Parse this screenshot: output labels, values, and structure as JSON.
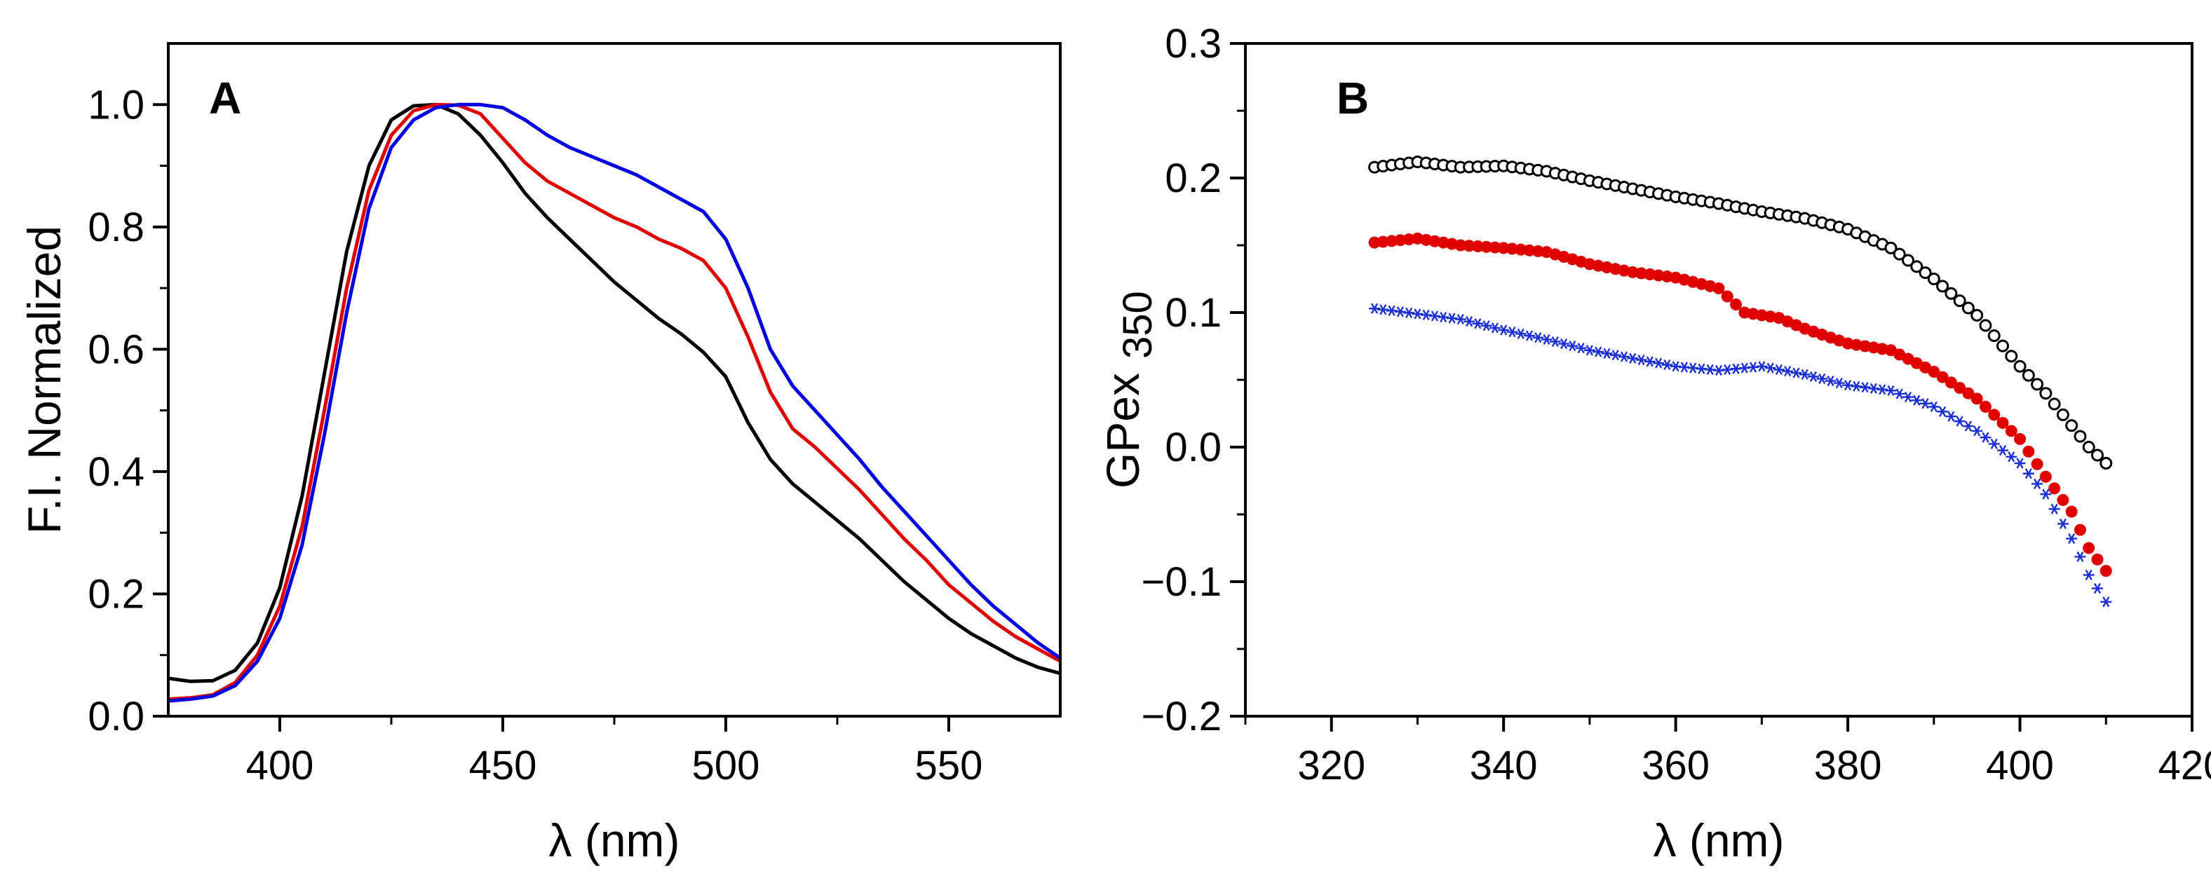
{
  "chart_data": [
    {
      "panel_label": "A",
      "type": "line",
      "xlabel": "λ (nm)",
      "ylabel": "F.I. Normalized",
      "xlim": [
        375,
        575
      ],
      "ylim": [
        0.0,
        1.1
      ],
      "xticks": [
        400,
        450,
        500,
        550
      ],
      "xtick_labels": [
        "400",
        "450",
        "500",
        "550"
      ],
      "yticks": [
        0.0,
        0.2,
        0.4,
        0.6,
        0.8,
        1.0
      ],
      "ytick_labels": [
        "0.0",
        "0.2",
        "0.4",
        "0.6",
        "0.8",
        "1.0"
      ],
      "grid": false,
      "series": [
        {
          "name": "black",
          "color": "#000000",
          "x": [
            375,
            380,
            385,
            390,
            395,
            400,
            405,
            410,
            415,
            420,
            425,
            430,
            435,
            440,
            445,
            450,
            455,
            460,
            465,
            470,
            475,
            480,
            485,
            490,
            495,
            500,
            505,
            510,
            515,
            520,
            525,
            530,
            535,
            540,
            545,
            550,
            555,
            560,
            565,
            570,
            575
          ],
          "y": [
            0.062,
            0.057,
            0.058,
            0.075,
            0.12,
            0.21,
            0.36,
            0.56,
            0.76,
            0.9,
            0.975,
            0.998,
            1.0,
            0.985,
            0.95,
            0.905,
            0.855,
            0.815,
            0.78,
            0.745,
            0.71,
            0.68,
            0.65,
            0.625,
            0.595,
            0.555,
            0.48,
            0.42,
            0.38,
            0.35,
            0.32,
            0.29,
            0.255,
            0.22,
            0.19,
            0.16,
            0.135,
            0.115,
            0.095,
            0.08,
            0.07
          ]
        },
        {
          "name": "red",
          "color": "#e00000",
          "x": [
            375,
            380,
            385,
            390,
            395,
            400,
            405,
            410,
            415,
            420,
            425,
            430,
            435,
            440,
            445,
            450,
            455,
            460,
            465,
            470,
            475,
            480,
            485,
            490,
            495,
            500,
            505,
            510,
            515,
            520,
            525,
            530,
            535,
            540,
            545,
            550,
            555,
            560,
            565,
            570,
            575
          ],
          "y": [
            0.028,
            0.03,
            0.035,
            0.055,
            0.1,
            0.18,
            0.31,
            0.5,
            0.7,
            0.86,
            0.95,
            0.99,
            1.0,
            0.999,
            0.985,
            0.945,
            0.905,
            0.875,
            0.855,
            0.835,
            0.815,
            0.8,
            0.78,
            0.765,
            0.745,
            0.7,
            0.62,
            0.53,
            0.47,
            0.44,
            0.405,
            0.37,
            0.33,
            0.29,
            0.255,
            0.215,
            0.185,
            0.155,
            0.13,
            0.11,
            0.09
          ]
        },
        {
          "name": "blue",
          "color": "#0000e0",
          "x": [
            375,
            380,
            385,
            390,
            395,
            400,
            405,
            410,
            415,
            420,
            425,
            430,
            435,
            440,
            445,
            450,
            455,
            460,
            465,
            470,
            475,
            480,
            485,
            490,
            495,
            500,
            505,
            510,
            515,
            520,
            525,
            530,
            535,
            540,
            545,
            550,
            555,
            560,
            565,
            570,
            575
          ],
          "y": [
            0.025,
            0.028,
            0.033,
            0.05,
            0.09,
            0.16,
            0.28,
            0.46,
            0.66,
            0.83,
            0.93,
            0.975,
            0.995,
            1.0,
            1.0,
            0.995,
            0.975,
            0.95,
            0.93,
            0.915,
            0.9,
            0.885,
            0.865,
            0.845,
            0.825,
            0.78,
            0.7,
            0.6,
            0.54,
            0.5,
            0.46,
            0.42,
            0.375,
            0.335,
            0.295,
            0.255,
            0.215,
            0.18,
            0.15,
            0.12,
            0.095
          ]
        }
      ]
    },
    {
      "panel_label": "B",
      "type": "scatter",
      "xlabel": "λ (nm)",
      "ylabel_main": "GPex",
      "ylabel_sub": "350",
      "xlim": [
        310,
        420
      ],
      "ylim": [
        -0.2,
        0.3
      ],
      "xticks": [
        320,
        340,
        360,
        380,
        400,
        420
      ],
      "xtick_labels": [
        "320",
        "340",
        "360",
        "380",
        "400",
        "420"
      ],
      "yticks": [
        -0.2,
        -0.1,
        0.0,
        0.1,
        0.2,
        0.3
      ],
      "ytick_labels": [
        "−0.2",
        "−0.1",
        "0.0",
        "0.1",
        "0.2",
        "0.3"
      ],
      "grid": false,
      "series": [
        {
          "name": "open circles (black)",
          "marker": "open-circle",
          "color": "#000000",
          "x": [
            325,
            330,
            335,
            340,
            345,
            350,
            355,
            360,
            365,
            370,
            375,
            380,
            385,
            390,
            395,
            400,
            403,
            406,
            408,
            410
          ],
          "y": [
            0.208,
            0.212,
            0.208,
            0.209,
            0.205,
            0.198,
            0.192,
            0.186,
            0.181,
            0.175,
            0.17,
            0.162,
            0.148,
            0.125,
            0.098,
            0.06,
            0.04,
            0.016,
            0.0,
            -0.012
          ]
        },
        {
          "name": "filled circles (red)",
          "marker": "filled-circle",
          "color": "#e00000",
          "x": [
            325,
            330,
            335,
            340,
            345,
            350,
            355,
            360,
            365,
            368,
            372,
            375,
            380,
            385,
            390,
            395,
            400,
            403,
            406,
            408,
            410
          ],
          "y": [
            0.152,
            0.155,
            0.15,
            0.148,
            0.145,
            0.136,
            0.13,
            0.126,
            0.118,
            0.1,
            0.096,
            0.088,
            0.077,
            0.072,
            0.056,
            0.036,
            0.006,
            -0.022,
            -0.048,
            -0.075,
            -0.092
          ]
        },
        {
          "name": "asterisks (blue)",
          "marker": "asterisk",
          "color": "#1a2ed8",
          "x": [
            325,
            330,
            335,
            340,
            345,
            350,
            355,
            360,
            365,
            370,
            375,
            380,
            385,
            390,
            395,
            400,
            403,
            406,
            408,
            410
          ],
          "y": [
            0.103,
            0.099,
            0.095,
            0.087,
            0.08,
            0.072,
            0.066,
            0.06,
            0.057,
            0.06,
            0.054,
            0.046,
            0.042,
            0.03,
            0.012,
            -0.012,
            -0.035,
            -0.068,
            -0.095,
            -0.115
          ]
        }
      ]
    }
  ]
}
